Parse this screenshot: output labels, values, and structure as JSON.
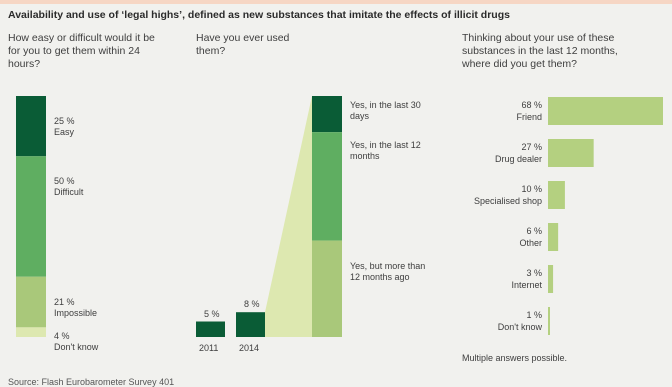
{
  "title": "Availability and use of ‘legal highs’, defined as new substances that imitate the effects of illicit drugs",
  "source": "Source: Flash Eurobarometer Survey 401",
  "note": "Multiple answers possible.",
  "colors": {
    "dark": "#0a5c36",
    "mid": "#5fae61",
    "light": "#a9c87a",
    "pale": "#dde8b0",
    "bar": "#b4d080"
  },
  "chart_data": [
    {
      "type": "bar",
      "title": "How easy or difficult would it be for you to get them within 24 hours?",
      "stacked": true,
      "categories": [
        "Easy",
        "Difficult",
        "Impossible",
        "Don't know"
      ],
      "values": [
        25,
        50,
        21,
        4
      ],
      "value_labels": [
        "25 %",
        "50 %",
        "21 %",
        "4 %"
      ],
      "unit": "%"
    },
    {
      "type": "bar",
      "title": "Have you ever used them?",
      "categories": [
        "2011",
        "2014"
      ],
      "values": [
        5,
        8
      ],
      "value_labels": [
        "5 %",
        "8 %"
      ],
      "unit": "%",
      "breakdown_2014": {
        "categories": [
          "Yes, in the last 30 days",
          "Yes, in the last 12 months",
          "Yes, but more than 12 months ago"
        ],
        "values": [
          15,
          45,
          40
        ]
      }
    },
    {
      "type": "bar",
      "orientation": "horizontal",
      "title": "Thinking about your use of these substances in the last 12 months, where did you get them?",
      "categories": [
        "Friend",
        "Drug dealer",
        "Specialised shop",
        "Other",
        "Internet",
        "Don't know"
      ],
      "values": [
        68,
        27,
        10,
        6,
        3,
        1
      ],
      "value_labels": [
        "68 %",
        "27 %",
        "10 %",
        "6 %",
        "3 %",
        "1 %"
      ],
      "unit": "%"
    }
  ]
}
